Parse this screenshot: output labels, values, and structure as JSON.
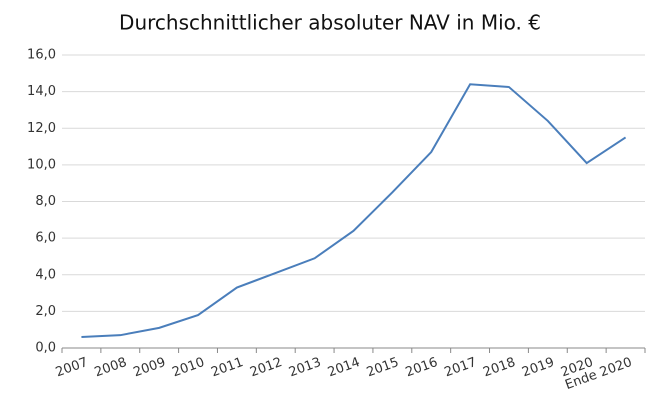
{
  "chart_data": {
    "type": "line",
    "title": "Durchschnittlicher absoluter NAV in Mio. €",
    "categories": [
      "2007",
      "2008",
      "2009",
      "2010",
      "2011",
      "2012",
      "2013",
      "2014",
      "2015",
      "2016",
      "2017",
      "2018",
      "2019",
      "2020",
      "Ende 2020"
    ],
    "series": [
      {
        "name": "NAV",
        "color": "#4a7ebb",
        "values": [
          0.6,
          0.7,
          1.1,
          1.8,
          3.3,
          4.1,
          4.9,
          6.4,
          8.5,
          10.7,
          14.4,
          14.25,
          12.4,
          10.1,
          11.5
        ]
      }
    ],
    "ylim": [
      0,
      16
    ],
    "yticks": [
      {
        "value": 0,
        "label": "0,0"
      },
      {
        "value": 2,
        "label": "2,0"
      },
      {
        "value": 4,
        "label": "4,0"
      },
      {
        "value": 6,
        "label": "6,0"
      },
      {
        "value": 8,
        "label": "8,0"
      },
      {
        "value": 10,
        "label": "10,0"
      },
      {
        "value": 12,
        "label": "12,0"
      },
      {
        "value": 14,
        "label": "14,0"
      },
      {
        "value": 16,
        "label": "16,0"
      }
    ],
    "grid": true,
    "legend": false
  }
}
